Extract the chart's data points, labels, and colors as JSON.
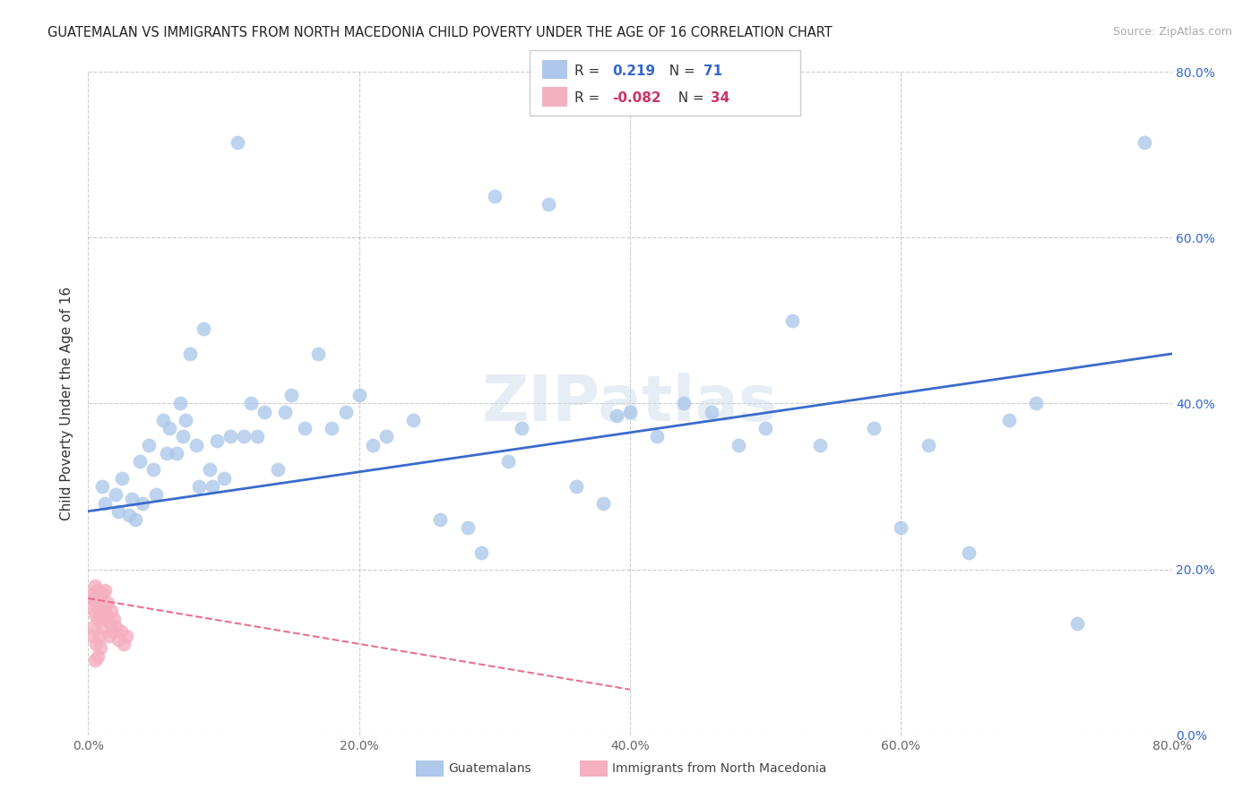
{
  "title": "GUATEMALAN VS IMMIGRANTS FROM NORTH MACEDONIA CHILD POVERTY UNDER THE AGE OF 16 CORRELATION CHART",
  "source": "Source: ZipAtlas.com",
  "ylabel": "Child Poverty Under the Age of 16",
  "xlim": [
    0.0,
    0.8
  ],
  "ylim": [
    0.0,
    0.8
  ],
  "x_ticks": [
    0.0,
    0.2,
    0.4,
    0.6,
    0.8
  ],
  "y_ticks": [
    0.0,
    0.2,
    0.4,
    0.6,
    0.8
  ],
  "x_tick_labels": [
    "0.0%",
    "20.0%",
    "40.0%",
    "60.0%",
    "80.0%"
  ],
  "y_tick_labels_right": [
    "0.0%",
    "20.0%",
    "40.0%",
    "60.0%",
    "80.0%"
  ],
  "r_blue": 0.219,
  "n_blue": 71,
  "r_pink": -0.082,
  "n_pink": 34,
  "blue_color": "#adc8ea",
  "pink_color": "#f4afc0",
  "line_blue": "#3a6bcc",
  "line_pink": "#e87090",
  "watermark": "ZIPatlas",
  "blue_x": [
    0.01,
    0.012,
    0.02,
    0.022,
    0.025,
    0.03,
    0.032,
    0.035,
    0.038,
    0.04,
    0.045,
    0.048,
    0.05,
    0.055,
    0.058,
    0.06,
    0.065,
    0.068,
    0.07,
    0.072,
    0.075,
    0.08,
    0.082,
    0.085,
    0.09,
    0.092,
    0.095,
    0.1,
    0.105,
    0.11,
    0.115,
    0.12,
    0.125,
    0.13,
    0.14,
    0.145,
    0.15,
    0.16,
    0.17,
    0.18,
    0.19,
    0.2,
    0.21,
    0.22,
    0.24,
    0.26,
    0.28,
    0.29,
    0.3,
    0.31,
    0.32,
    0.34,
    0.36,
    0.38,
    0.39,
    0.4,
    0.42,
    0.44,
    0.46,
    0.48,
    0.5,
    0.52,
    0.54,
    0.58,
    0.6,
    0.62,
    0.65,
    0.68,
    0.7,
    0.73,
    0.78
  ],
  "blue_y": [
    0.3,
    0.28,
    0.29,
    0.27,
    0.31,
    0.265,
    0.285,
    0.26,
    0.33,
    0.28,
    0.35,
    0.32,
    0.29,
    0.38,
    0.34,
    0.37,
    0.34,
    0.4,
    0.36,
    0.38,
    0.46,
    0.35,
    0.3,
    0.49,
    0.32,
    0.3,
    0.355,
    0.31,
    0.36,
    0.715,
    0.36,
    0.4,
    0.36,
    0.39,
    0.32,
    0.39,
    0.41,
    0.37,
    0.46,
    0.37,
    0.39,
    0.41,
    0.35,
    0.36,
    0.38,
    0.26,
    0.25,
    0.22,
    0.65,
    0.33,
    0.37,
    0.64,
    0.3,
    0.28,
    0.385,
    0.39,
    0.36,
    0.4,
    0.39,
    0.35,
    0.37,
    0.5,
    0.35,
    0.37,
    0.25,
    0.35,
    0.22,
    0.38,
    0.4,
    0.135,
    0.715
  ],
  "pink_x": [
    0.002,
    0.003,
    0.003,
    0.004,
    0.004,
    0.005,
    0.005,
    0.005,
    0.006,
    0.006,
    0.007,
    0.007,
    0.007,
    0.008,
    0.008,
    0.009,
    0.009,
    0.01,
    0.01,
    0.011,
    0.012,
    0.012,
    0.013,
    0.014,
    0.015,
    0.016,
    0.017,
    0.018,
    0.019,
    0.02,
    0.022,
    0.024,
    0.026,
    0.028
  ],
  "pink_y": [
    0.155,
    0.12,
    0.17,
    0.13,
    0.165,
    0.09,
    0.145,
    0.18,
    0.11,
    0.16,
    0.095,
    0.14,
    0.175,
    0.12,
    0.165,
    0.105,
    0.15,
    0.13,
    0.17,
    0.14,
    0.155,
    0.175,
    0.145,
    0.16,
    0.12,
    0.135,
    0.15,
    0.125,
    0.14,
    0.13,
    0.115,
    0.125,
    0.11,
    0.12
  ],
  "blue_line_x": [
    0.0,
    0.8
  ],
  "blue_line_y": [
    0.27,
    0.46
  ],
  "pink_line_x": [
    0.0,
    0.4
  ],
  "pink_line_y": [
    0.165,
    0.055
  ]
}
